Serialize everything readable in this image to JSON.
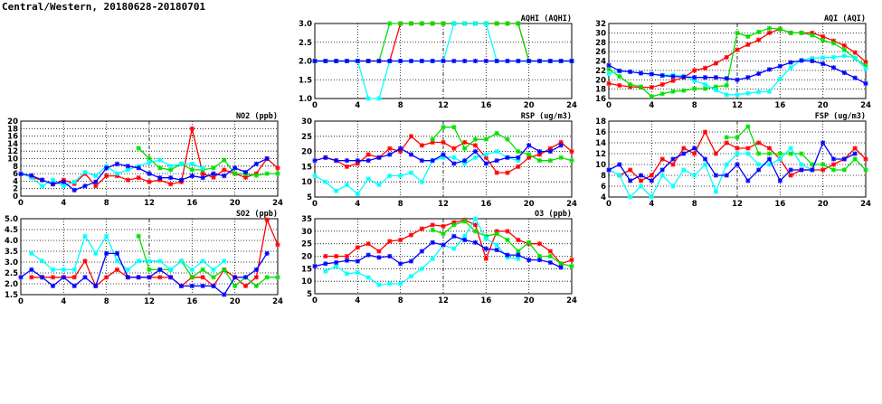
{
  "title": "Central/Western, 20180628-20180701",
  "colors": {
    "red": "#ff0000",
    "green": "#00e000",
    "cyan": "#00ffff",
    "blue": "#0000ff"
  },
  "chart_data": [
    {
      "id": "aqhi",
      "type": "line",
      "title": "AQHI (AQHI)",
      "xlim": [
        0,
        24
      ],
      "xticks": [
        0,
        4,
        8,
        12,
        16,
        20,
        24
      ],
      "ylim": [
        1,
        3
      ],
      "yticks": [
        "1.0",
        "1.5",
        "2.0",
        "2.5",
        "3.0"
      ],
      "grid": true,
      "series": [
        {
          "name": "red",
          "values": [
            2,
            2,
            2,
            2,
            2,
            2,
            2,
            2,
            3,
            3,
            3,
            3,
            3,
            3,
            3,
            3,
            3,
            3,
            3,
            3,
            2,
            2,
            2,
            2,
            2
          ]
        },
        {
          "name": "green",
          "values": [
            2,
            2,
            2,
            2,
            2,
            2,
            2,
            3,
            3,
            3,
            3,
            3,
            3,
            3,
            3,
            3,
            3,
            3,
            3,
            3,
            2,
            2,
            2,
            2,
            2
          ]
        },
        {
          "name": "cyan",
          "values": [
            2,
            2,
            2,
            2,
            2,
            1,
            1,
            2,
            2,
            2,
            2,
            2,
            2,
            3,
            3,
            3,
            3,
            2,
            2,
            2,
            2,
            2,
            2,
            2,
            2
          ]
        },
        {
          "name": "blue",
          "values": [
            2,
            2,
            2,
            2,
            2,
            2,
            2,
            2,
            2,
            2,
            2,
            2,
            2,
            2,
            2,
            2,
            2,
            2,
            2,
            2,
            2,
            2,
            2,
            2,
            2
          ]
        }
      ]
    },
    {
      "id": "aqi",
      "type": "line",
      "title": "AQI (AQI)",
      "xlim": [
        0,
        24
      ],
      "xticks": [
        0,
        4,
        8,
        12,
        16,
        20,
        24
      ],
      "ylim": [
        16,
        32
      ],
      "yticks": [
        "16",
        "18",
        "20",
        "22",
        "24",
        "26",
        "28",
        "30",
        "32"
      ],
      "grid": true,
      "series": [
        {
          "name": "red",
          "values": [
            19.2,
            18.8,
            18.5,
            18.4,
            18.4,
            19,
            19.8,
            20.5,
            22,
            22.5,
            23.5,
            24.8,
            26.4,
            27.5,
            28.5,
            30,
            30.8,
            30,
            30,
            30,
            29.2,
            28.3,
            27.3,
            25.8,
            23.8
          ]
        },
        {
          "name": "green",
          "values": [
            22.3,
            20.7,
            19,
            18.5,
            16.4,
            17,
            17.5,
            17.7,
            18.1,
            18.1,
            18.5,
            18.8,
            30,
            29.2,
            30.2,
            31,
            30.8,
            30,
            30,
            29.5,
            28.4,
            27.8,
            26.4,
            24.6,
            23
          ]
        },
        {
          "name": "cyan",
          "values": [
            21.3,
            21.8,
            21.7,
            21.4,
            21.2,
            21,
            21,
            20.8,
            19.8,
            19,
            17.8,
            16.8,
            16.8,
            17.1,
            17.4,
            17.5,
            20.2,
            22.6,
            24.2,
            24.6,
            24.7,
            24.8,
            25.1,
            24.7,
            22.4
          ]
        },
        {
          "name": "blue",
          "values": [
            23.1,
            21.9,
            21.7,
            21.4,
            21.2,
            20.9,
            20.7,
            20.6,
            20.5,
            20.5,
            20.5,
            20.3,
            20,
            20.5,
            21.3,
            22.2,
            22.9,
            23.7,
            24.1,
            24,
            23.4,
            22.6,
            21.5,
            20.4,
            19.2
          ]
        }
      ]
    },
    {
      "id": "no2",
      "type": "line",
      "title": "NO2 (ppb)",
      "xlim": [
        0,
        24
      ],
      "xticks": [
        0,
        4,
        8,
        12,
        16,
        20,
        24
      ],
      "ylim": [
        0,
        20
      ],
      "yticks": [
        "0",
        "2",
        "4",
        "6",
        "8",
        "10",
        "12",
        "14",
        "16",
        "18",
        "20"
      ],
      "grid": true,
      "series": [
        {
          "name": "red",
          "values": [
            null,
            5,
            4.3,
            3.2,
            4.3,
            3.3,
            6,
            2.7,
            5.4,
            5.4,
            4.3,
            4.9,
            3.8,
            4.3,
            3.2,
            3.8,
            18,
            6,
            5,
            7,
            6,
            5,
            6,
            10,
            7.5
          ]
        },
        {
          "name": "green",
          "values": [
            null,
            null,
            null,
            null,
            null,
            null,
            null,
            null,
            null,
            null,
            null,
            12.8,
            10,
            7.5,
            7,
            8.6,
            7,
            7,
            7.5,
            9.6,
            6,
            5.9,
            5.5,
            6,
            6
          ]
        },
        {
          "name": "cyan",
          "values": [
            6,
            5,
            2.7,
            4.3,
            2.7,
            3.8,
            6.4,
            5.4,
            8,
            6,
            7,
            8,
            9,
            9.6,
            8,
            8.6,
            8.6,
            7.5,
            null,
            null,
            null,
            null,
            null,
            null,
            null
          ]
        },
        {
          "name": "blue",
          "values": [
            5.9,
            5.5,
            4.3,
            3.2,
            3.8,
            1.6,
            2.7,
            3.8,
            7.5,
            8.6,
            8,
            7.5,
            6,
            4.9,
            4.9,
            4.3,
            5.4,
            4.9,
            6,
            5.4,
            7.5,
            6.4,
            8.6,
            10,
            null
          ]
        }
      ]
    },
    {
      "id": "rsp",
      "type": "line",
      "title": "RSP (ug/m3)",
      "xlim": [
        0,
        24
      ],
      "xticks": [
        0,
        4,
        8,
        12,
        16,
        20,
        24
      ],
      "ylim": [
        5,
        30
      ],
      "yticks": [
        "5",
        "10",
        "15",
        "20",
        "25",
        "30"
      ],
      "grid": true,
      "series": [
        {
          "name": "red",
          "values": [
            null,
            18,
            17,
            15,
            16,
            19,
            18,
            21,
            20,
            25,
            22,
            23,
            23,
            21,
            23,
            22,
            18,
            13,
            13,
            15,
            18,
            19,
            21,
            23,
            20
          ]
        },
        {
          "name": "green",
          "values": [
            null,
            null,
            null,
            null,
            null,
            null,
            null,
            null,
            null,
            null,
            null,
            24,
            28,
            28,
            21,
            24,
            24,
            26,
            24,
            20,
            19,
            17,
            17,
            18,
            17
          ]
        },
        {
          "name": "cyan",
          "values": [
            12,
            10,
            7,
            9,
            6,
            11,
            9,
            12,
            12,
            13,
            10,
            17,
            18,
            18,
            16,
            18,
            19,
            20,
            18,
            17,
            null,
            null,
            null,
            null,
            null
          ]
        },
        {
          "name": "blue",
          "values": [
            17,
            18,
            17,
            17,
            17,
            17,
            18,
            19,
            21,
            19,
            17,
            17,
            19,
            16,
            17,
            20,
            16,
            17,
            18,
            18,
            22,
            20,
            20,
            22,
            null
          ]
        }
      ]
    },
    {
      "id": "fsp",
      "type": "line",
      "title": "FSP (ug/m3)",
      "xlim": [
        0,
        24
      ],
      "xticks": [
        0,
        4,
        8,
        12,
        16,
        20,
        24
      ],
      "ylim": [
        4,
        18
      ],
      "yticks": [
        "4",
        "6",
        "8",
        "10",
        "12",
        "14",
        "16",
        "18"
      ],
      "grid": true,
      "series": [
        {
          "name": "red",
          "values": [
            null,
            8,
            9,
            7,
            8,
            11,
            10,
            13,
            12,
            16,
            12,
            14,
            13,
            13,
            14,
            13,
            11,
            8,
            9,
            9,
            9,
            10,
            11,
            13,
            11
          ]
        },
        {
          "name": "green",
          "values": [
            null,
            null,
            null,
            null,
            null,
            null,
            null,
            null,
            null,
            null,
            null,
            15,
            15,
            17,
            12,
            12,
            12,
            12,
            12,
            10,
            10,
            9,
            9,
            11,
            9
          ]
        },
        {
          "name": "cyan",
          "values": [
            9,
            8,
            4,
            6,
            4,
            8,
            6,
            9,
            8,
            10,
            5,
            10,
            12,
            12,
            10,
            10,
            11,
            13,
            10,
            9,
            null,
            null,
            null,
            null,
            null
          ]
        },
        {
          "name": "blue",
          "values": [
            9,
            10,
            7,
            8,
            7,
            9,
            11,
            12,
            13,
            11,
            8,
            8,
            10,
            7,
            9,
            11,
            7,
            9,
            9,
            9,
            14,
            11,
            11,
            12,
            null
          ]
        }
      ]
    },
    {
      "id": "so2",
      "type": "line",
      "title": "SO2 (ppb)",
      "xlim": [
        0,
        24
      ],
      "xticks": [
        0,
        4,
        8,
        12,
        16,
        20,
        24
      ],
      "ylim": [
        1.5,
        5
      ],
      "yticks": [
        "1.5",
        "2.0",
        "2.5",
        "3.0",
        "3.5",
        "4.0",
        "4.5",
        "5.0"
      ],
      "grid": true,
      "series": [
        {
          "name": "red",
          "values": [
            null,
            2.3,
            2.3,
            2.3,
            2.3,
            2.3,
            3.05,
            1.9,
            2.3,
            2.65,
            2.3,
            2.3,
            2.3,
            2.3,
            2.3,
            1.9,
            2.3,
            2.3,
            1.9,
            2.65,
            2.3,
            1.9,
            2.3,
            4.95,
            3.8
          ]
        },
        {
          "name": "green",
          "values": [
            null,
            null,
            null,
            null,
            null,
            null,
            null,
            null,
            null,
            null,
            null,
            4.2,
            2.65,
            2.65,
            2.65,
            3.05,
            2.3,
            2.65,
            2.3,
            2.65,
            1.9,
            2.3,
            1.9,
            2.3,
            2.3
          ]
        },
        {
          "name": "cyan",
          "values": [
            null,
            3.4,
            3.05,
            2.65,
            2.65,
            2.65,
            4.2,
            3.4,
            4.2,
            3.05,
            2.65,
            3.05,
            3.05,
            3.05,
            2.65,
            3.05,
            2.65,
            3.05,
            2.65,
            3.05,
            null,
            null,
            null,
            null,
            null
          ]
        },
        {
          "name": "blue",
          "values": [
            2.3,
            2.65,
            2.3,
            1.9,
            2.3,
            1.9,
            2.3,
            1.9,
            3.4,
            3.4,
            2.3,
            2.3,
            2.3,
            2.65,
            2.3,
            1.9,
            1.9,
            1.9,
            1.9,
            1.5,
            2.3,
            2.3,
            2.65,
            3.4,
            null
          ]
        }
      ]
    },
    {
      "id": "o3",
      "type": "line",
      "title": "O3 (ppb)",
      "xlim": [
        0,
        24
      ],
      "xticks": [
        0,
        4,
        8,
        12,
        16,
        20,
        24
      ],
      "ylim": [
        5,
        35
      ],
      "yticks": [
        "5",
        "10",
        "15",
        "20",
        "25",
        "30",
        "35"
      ],
      "grid": true,
      "series": [
        {
          "name": "red",
          "values": [
            null,
            20,
            20,
            20,
            23.5,
            25,
            22,
            26,
            26.5,
            28.5,
            31,
            32.5,
            32,
            33.5,
            34.5,
            32.5,
            19,
            30,
            30,
            26.5,
            25,
            25,
            22,
            17,
            18.5
          ]
        },
        {
          "name": "green",
          "values": [
            null,
            null,
            null,
            null,
            null,
            null,
            null,
            null,
            null,
            null,
            null,
            30.5,
            29,
            32.5,
            34,
            30,
            28,
            29,
            26.5,
            22,
            25.5,
            20,
            20,
            17,
            16
          ]
        },
        {
          "name": "cyan",
          "values": [
            null,
            14,
            16,
            13,
            13.5,
            11.5,
            8.5,
            9,
            9,
            12,
            15,
            19,
            24.5,
            23,
            28,
            35,
            27,
            24.5,
            19.5,
            19,
            null,
            null,
            null,
            null,
            null
          ]
        },
        {
          "name": "blue",
          "values": [
            16,
            17,
            17.5,
            18.3,
            18,
            20.5,
            19.5,
            20,
            17,
            18,
            22,
            25.5,
            24.5,
            28,
            26.5,
            25.5,
            23,
            22.5,
            20.5,
            20.5,
            18.5,
            18.5,
            17.5,
            15.5,
            null
          ]
        }
      ]
    }
  ]
}
